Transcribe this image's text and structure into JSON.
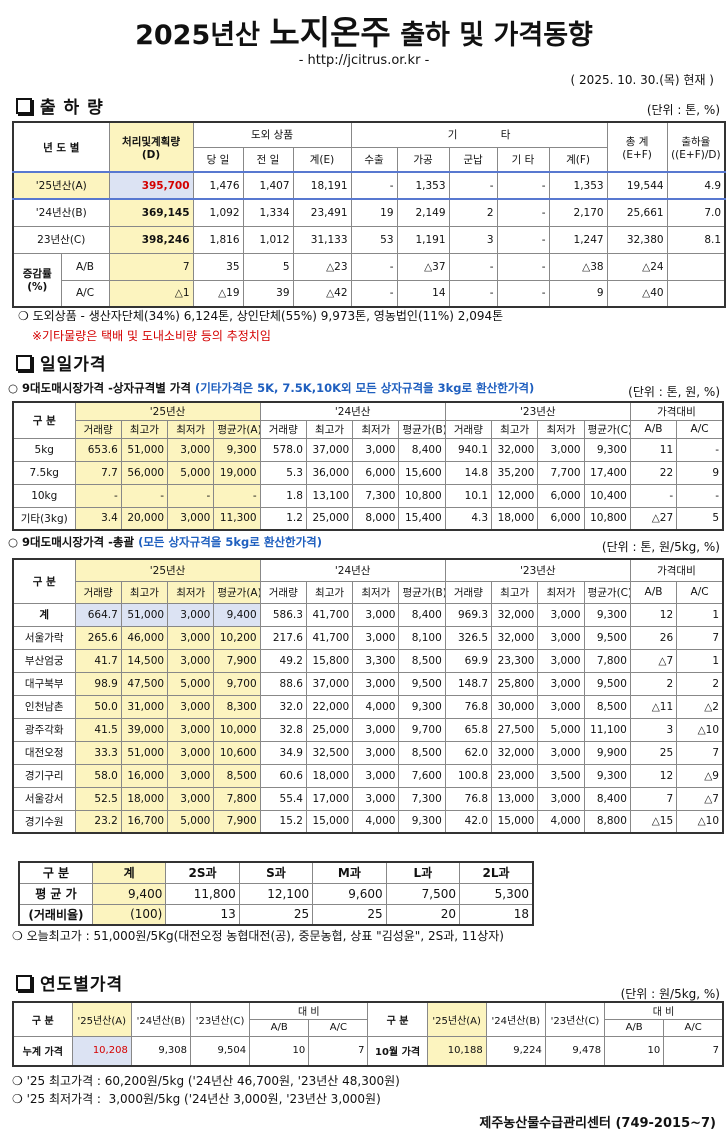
{
  "header": {
    "title_parts": [
      "2025년산",
      "노지온주",
      "출하 및 가격동향"
    ],
    "url": "- http://jcitrus.or.kr -",
    "date": "( 2025.  10. 30.(목) 현재 )"
  },
  "shipments": {
    "title": "출 하 량",
    "unit": "(단위 : 톤, %)",
    "head": [
      "년 도 별",
      "처리및계획량",
      "(D)",
      "도외 상품",
      "기 타",
      "총 계",
      "(E+F)",
      "출하율",
      "((E+F)/D)",
      "당 일",
      "전 일",
      "계(E)",
      "수출",
      "가공",
      "군납",
      "기 타",
      "계(F)"
    ],
    "rows": [
      {
        "label": "'25년산(A)",
        "cells": [
          "395,700",
          "1,476",
          "1,407",
          "18,191",
          "-",
          "1,353",
          "-",
          "-",
          "1,353",
          "19,544",
          "4.9"
        ]
      },
      {
        "label": "'24년산(B)",
        "cells": [
          "369,145",
          "1,092",
          "1,334",
          "23,491",
          "19",
          "2,149",
          "2",
          "-",
          "2,170",
          "25,661",
          "7.0"
        ]
      },
      {
        "label": "23년산(C)",
        "cells": [
          "398,246",
          "1,816",
          "1,012",
          "31,133",
          "53",
          "1,191",
          "3",
          "-",
          "1,247",
          "32,380",
          "8.1"
        ]
      }
    ],
    "change": {
      "label": "증감률",
      "label2": "(%)",
      "rows": [
        {
          "label": "A/B",
          "cells": [
            "7",
            "35",
            "5",
            "△23",
            "-",
            "△37",
            "-",
            "-",
            "△38",
            "△24",
            null
          ]
        },
        {
          "label": "A/C",
          "cells": [
            "△1",
            "△19",
            "39",
            "△42",
            "-",
            "14",
            "-",
            "-",
            "9",
            "△40",
            null
          ]
        }
      ]
    },
    "notes": [
      "❍ 도외상품 - 생산자단체(34%) 6,124톤, 상인단체(55%) 9,973톤, 영농법인(11%) 2,094톤",
      "※기타물량은 택배 및 도내소비량 등의 추정치임"
    ]
  },
  "daily": {
    "title": "일일가격"
  },
  "box_prices": {
    "title": "○ 9대도매시장가격 -상자규격별 가격",
    "note": "(기타가격은 5K, 7.5K,10K외 모든 상자규격을 3kg로 환산한가격)",
    "unit": "(단위 : 톤, 원, %)",
    "head": {
      "group": "구 분",
      "years": [
        "'25년산",
        "'24년산",
        "'23년산"
      ],
      "compare": "가격대비",
      "cols": [
        "거래량",
        "최고가",
        "최저가",
        "평균가(A)",
        "거래량",
        "최고가",
        "최저가",
        "평균가(B)",
        "거래량",
        "최고가",
        "최저가",
        "평균가(C)",
        "A/B",
        "A/C"
      ]
    },
    "rows": [
      {
        "label": "5kg",
        "cells": [
          "653.6",
          "51,000",
          "3,000",
          "9,300",
          "578.0",
          "37,000",
          "3,000",
          "8,400",
          "940.1",
          "32,000",
          "3,000",
          "9,300",
          "11",
          "-"
        ]
      },
      {
        "label": "7.5kg",
        "cells": [
          "7.7",
          "56,000",
          "5,000",
          "19,000",
          "5.3",
          "36,000",
          "6,000",
          "15,600",
          "14.8",
          "35,200",
          "7,700",
          "17,400",
          "22",
          "9"
        ]
      },
      {
        "label": "10kg",
        "cells": [
          "-",
          "-",
          "-",
          "-",
          "1.8",
          "13,100",
          "7,300",
          "10,800",
          "10.1",
          "12,000",
          "6,000",
          "10,400",
          "-",
          "-"
        ]
      },
      {
        "label": "기타(3kg)",
        "cells": [
          "3.4",
          "20,000",
          "3,000",
          "11,300",
          "1.2",
          "25,000",
          "8,000",
          "15,400",
          "4.3",
          "18,000",
          "6,000",
          "10,800",
          "△27",
          "5"
        ]
      }
    ]
  },
  "total_prices": {
    "title": "○ 9대도매시장가격 -총괄",
    "note": "(모든 상자규격을 5kg로 환산한가격)",
    "unit": "(단위 : 톤, 원/5kg, %)",
    "head": {
      "group": "구 분",
      "years": [
        "'25년산",
        "'24년산",
        "'23년산"
      ],
      "compare": "가격대비",
      "cols": [
        "거래량",
        "최고가",
        "최저가",
        "평균가(A)",
        "거래량",
        "최고가",
        "최저가",
        "평균가(B)",
        "거래량",
        "최고가",
        "최저가",
        "평균가(C)",
        "A/B",
        "A/C"
      ]
    },
    "rows": [
      {
        "label": "계",
        "cells": [
          "664.7",
          "51,000",
          "3,000",
          "9,400",
          "586.3",
          "41,700",
          "3,000",
          "8,400",
          "969.3",
          "32,000",
          "3,000",
          "9,300",
          "12",
          "1"
        ]
      },
      {
        "label": "서울가락",
        "cells": [
          "265.6",
          "46,000",
          "3,000",
          "10,200",
          "217.6",
          "41,700",
          "3,000",
          "8,100",
          "326.5",
          "32,000",
          "3,000",
          "9,500",
          "26",
          "7"
        ]
      },
      {
        "label": "부산엄궁",
        "cells": [
          "41.7",
          "14,500",
          "3,000",
          "7,900",
          "49.2",
          "15,800",
          "3,300",
          "8,500",
          "69.9",
          "23,300",
          "3,000",
          "7,800",
          "△7",
          "1"
        ]
      },
      {
        "label": "대구북부",
        "cells": [
          "98.9",
          "47,500",
          "5,000",
          "9,700",
          "88.6",
          "37,000",
          "3,000",
          "9,500",
          "148.7",
          "25,800",
          "3,000",
          "9,500",
          "2",
          "2"
        ]
      },
      {
        "label": "인천남촌",
        "cells": [
          "50.0",
          "31,000",
          "3,000",
          "8,300",
          "32.0",
          "22,000",
          "4,000",
          "9,300",
          "76.8",
          "30,000",
          "3,000",
          "8,500",
          "△11",
          "△2"
        ]
      },
      {
        "label": "광주각화",
        "cells": [
          "41.5",
          "39,000",
          "3,000",
          "10,000",
          "32.8",
          "25,000",
          "3,000",
          "9,700",
          "65.8",
          "27,500",
          "5,000",
          "11,100",
          "3",
          "△10"
        ]
      },
      {
        "label": "대전오정",
        "cells": [
          "33.3",
          "51,000",
          "3,000",
          "10,600",
          "34.9",
          "32,500",
          "3,000",
          "8,500",
          "62.0",
          "32,000",
          "3,000",
          "9,900",
          "25",
          "7"
        ]
      },
      {
        "label": "경기구리",
        "cells": [
          "58.0",
          "16,000",
          "3,000",
          "8,500",
          "60.6",
          "18,000",
          "3,000",
          "7,600",
          "100.8",
          "23,000",
          "3,500",
          "9,300",
          "12",
          "△9"
        ]
      },
      {
        "label": "서울강서",
        "cells": [
          "52.5",
          "18,000",
          "3,000",
          "7,800",
          "55.4",
          "17,000",
          "3,000",
          "7,300",
          "76.8",
          "13,000",
          "3,000",
          "8,400",
          "7",
          "△7"
        ]
      },
      {
        "label": "경기수원",
        "cells": [
          "23.2",
          "16,700",
          "5,000",
          "7,900",
          "15.2",
          "15,000",
          "4,000",
          "9,300",
          "42.0",
          "15,000",
          "4,000",
          "8,800",
          "△15",
          "△10"
        ]
      }
    ]
  },
  "grades": {
    "head": [
      "구 분",
      "계",
      "2S과",
      "S과",
      "M과",
      "L과",
      "2L과"
    ],
    "rows": [
      {
        "label": "평 균 가",
        "cells": [
          "9,400",
          "11,800",
          "12,100",
          "9,600",
          "7,500",
          "5,300"
        ]
      },
      {
        "label": "(거래비율)",
        "cells": [
          "(100)",
          "13",
          "25",
          "25",
          "20",
          "18"
        ]
      }
    ],
    "note": "❍ 오늘최고가 : 51,000원/5Kg(대전오정 농협대전(공), 중문농협, 상표 \"김성윤\", 2S과, 11상자)"
  },
  "yearly": {
    "title": "연도별가격",
    "unit": "(단위 : 원/5kg, %)",
    "head": {
      "group": "구 분",
      "cols": [
        "'25년산(A)",
        "'24년산(B)",
        "'23년산(C)"
      ],
      "compare": "대 비",
      "sub": [
        "A/B",
        "A/C"
      ]
    },
    "rows": [
      {
        "label": "누계 가격",
        "cells": [
          "10,208",
          "9,308",
          "9,504",
          "10",
          "7"
        ]
      },
      {
        "label": "10월 가격",
        "cells": [
          "10,188",
          "9,224",
          "9,478",
          "10",
          "7"
        ]
      }
    ],
    "notes": [
      "❍ '25 최고가격 : 60,200원/5kg ('24년산 46,700원, '23년산 48,300원)",
      "❍ '25 최저가격 :  3,000원/5kg ('24년산 3,000원, '23년산 3,000원)"
    ]
  },
  "footer": "제주농산물수급관리센터 (749-2015~7)"
}
